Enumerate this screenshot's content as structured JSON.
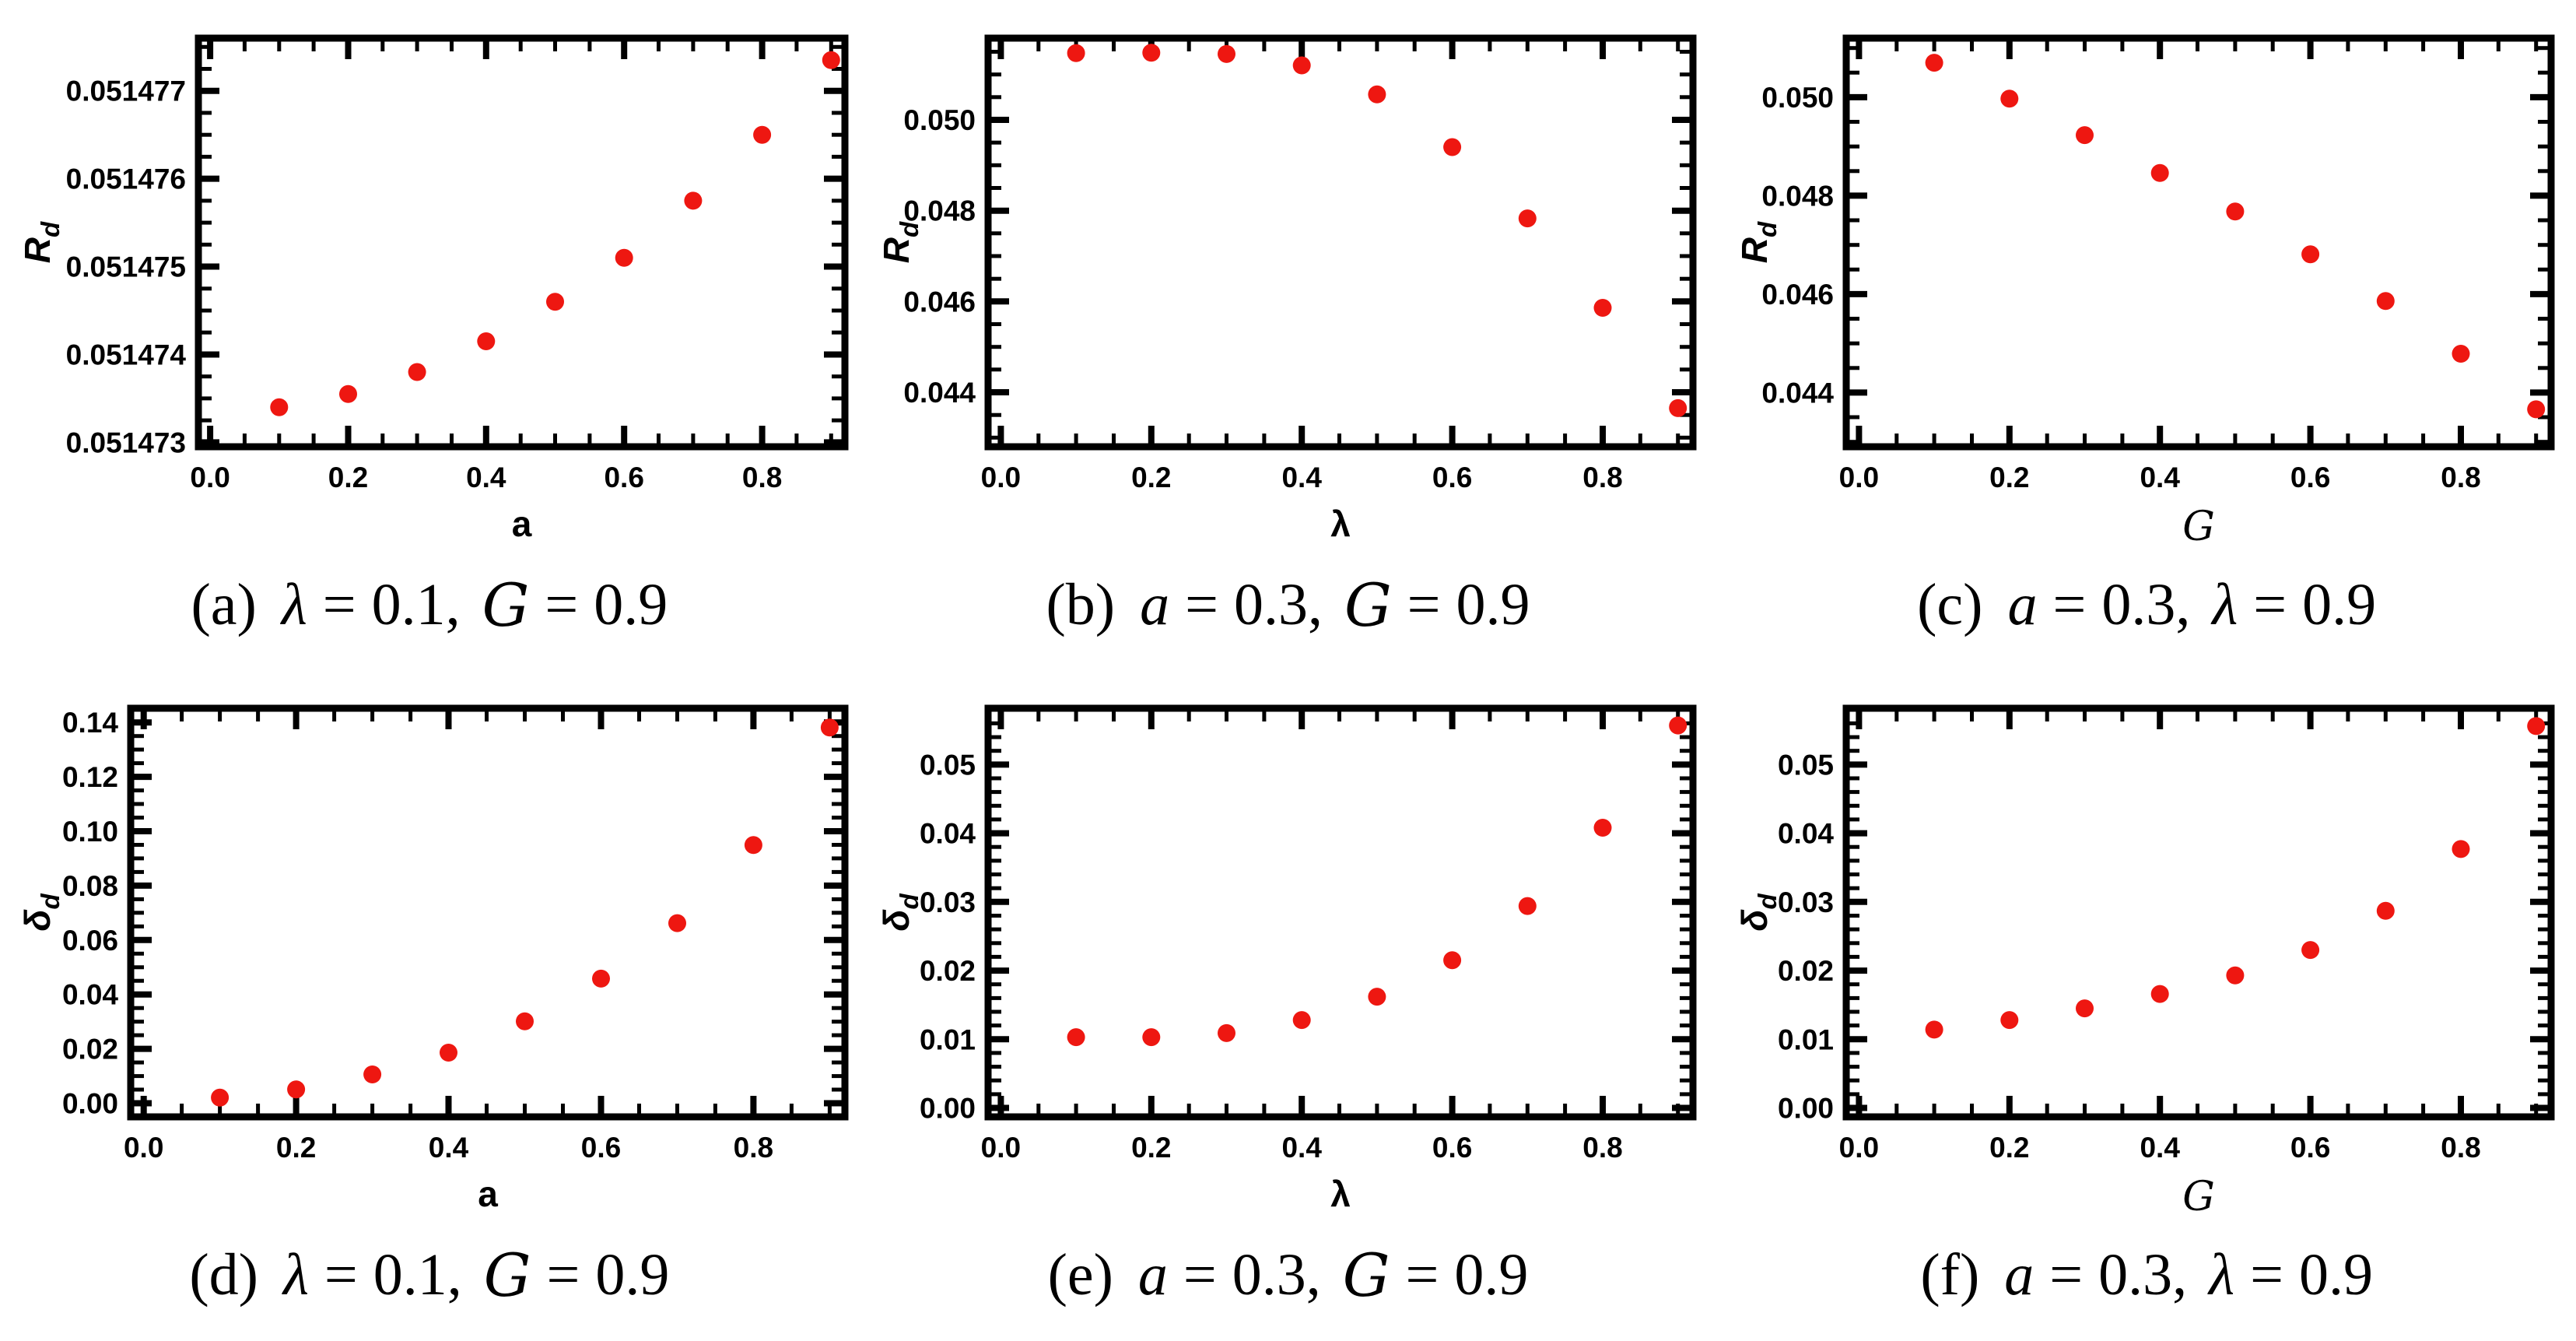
{
  "figure": {
    "background": "#ffffff",
    "point_color": "#ee1711",
    "frame_color": "#000000",
    "text_color": "#000000"
  },
  "math_glue": {
    "eq": "=",
    "comma": ","
  },
  "chart_data": [
    {
      "id": "a",
      "type": "scatter",
      "grid": false,
      "legend": null,
      "x": [
        0.1,
        0.2,
        0.3,
        0.4,
        0.5,
        0.6,
        0.7,
        0.8,
        0.9
      ],
      "y": [
        0.0514734,
        0.05147355,
        0.0514738,
        0.05147415,
        0.0514746,
        0.0514751,
        0.05147575,
        0.0514765,
        0.05147735
      ],
      "xlabel": {
        "text": "a",
        "script": false
      },
      "ylabel": {
        "base": "R",
        "sub": "d"
      },
      "xlim": [
        -0.017,
        0.92
      ],
      "ylim": [
        0.05147295,
        0.0514776
      ],
      "xticks": {
        "values": [
          0,
          0.2,
          0.4,
          0.6,
          0.8
        ],
        "labels": [
          "0.0",
          "0.2",
          "0.4",
          "0.6",
          "0.8"
        ],
        "minor_step": 0.05
      },
      "yticks": {
        "values": [
          0.051473,
          0.051474,
          0.051475,
          0.051476,
          0.051477
        ],
        "labels": [
          "0.051473",
          "0.051474",
          "0.051475",
          "0.051476",
          "0.051477"
        ],
        "minor_step": 2.5e-07
      },
      "caption": {
        "index": "(a)",
        "sym1": "λ",
        "val1": "0.1",
        "sym2": "G",
        "val2": "0.9"
      },
      "layout": {
        "left": 255,
        "right": 1086
      }
    },
    {
      "id": "b",
      "type": "scatter",
      "grid": false,
      "legend": null,
      "x": [
        0.1,
        0.2,
        0.3,
        0.4,
        0.5,
        0.6,
        0.7,
        0.8,
        0.9
      ],
      "y": [
        0.05147,
        0.05148,
        0.05145,
        0.0512,
        0.05056,
        0.0494,
        0.04783,
        0.04586,
        0.04365
      ],
      "xlabel": {
        "text": "λ",
        "script": false
      },
      "ylabel": {
        "base": "R",
        "sub": "d"
      },
      "xlim": [
        -0.017,
        0.92
      ],
      "ylim": [
        0.0428,
        0.0518
      ],
      "xticks": {
        "values": [
          0,
          0.2,
          0.4,
          0.6,
          0.8
        ],
        "labels": [
          "0.0",
          "0.2",
          "0.4",
          "0.6",
          "0.8"
        ],
        "minor_step": 0.05
      },
      "yticks": {
        "values": [
          0.044,
          0.046,
          0.048,
          0.05
        ],
        "labels": [
          "0.044",
          "0.046",
          "0.048",
          "0.050"
        ],
        "minor_step": 0.0005
      },
      "caption": {
        "index": "(b)",
        "sym1": "a",
        "val1": "0.3",
        "sym2": "G",
        "val2": "0.9"
      },
      "layout": {
        "left": 166,
        "right": 1072
      }
    },
    {
      "id": "c",
      "type": "scatter",
      "grid": false,
      "legend": null,
      "x": [
        0.1,
        0.2,
        0.3,
        0.4,
        0.5,
        0.6,
        0.7,
        0.8,
        0.9
      ],
      "y": [
        0.0507,
        0.04997,
        0.04923,
        0.04846,
        0.04768,
        0.04681,
        0.04586,
        0.04479,
        0.04366
      ],
      "xlabel": {
        "text": "G",
        "script": true
      },
      "ylabel": {
        "base": "R",
        "sub": "d"
      },
      "xlim": [
        -0.017,
        0.92
      ],
      "ylim": [
        0.0429,
        0.0512
      ],
      "xticks": {
        "values": [
          0,
          0.2,
          0.4,
          0.6,
          0.8
        ],
        "labels": [
          "0.0",
          "0.2",
          "0.4",
          "0.6",
          "0.8"
        ],
        "minor_step": 0.05
      },
      "yticks": {
        "values": [
          0.044,
          0.046,
          0.048,
          0.05
        ],
        "labels": [
          "0.044",
          "0.046",
          "0.048",
          "0.050"
        ],
        "minor_step": 0.0005
      },
      "caption": {
        "index": "(c)",
        "sym1": "a",
        "val1": "0.3",
        "sym2": "λ",
        "val2": "0.9"
      },
      "layout": {
        "left": 166,
        "right": 1072
      }
    },
    {
      "id": "d",
      "type": "scatter",
      "grid": false,
      "legend": null,
      "x": [
        0.1,
        0.2,
        0.3,
        0.4,
        0.5,
        0.6,
        0.7,
        0.8,
        0.9
      ],
      "y": [
        0.0021,
        0.0051,
        0.0106,
        0.0186,
        0.0301,
        0.0458,
        0.0662,
        0.0949,
        0.1381
      ],
      "xlabel": {
        "text": "a",
        "script": false
      },
      "ylabel": {
        "base": "δ",
        "sub": "d"
      },
      "xlim": [
        -0.017,
        0.92
      ],
      "ylim": [
        -0.005,
        0.1452
      ],
      "xticks": {
        "values": [
          0,
          0.2,
          0.4,
          0.6,
          0.8
        ],
        "labels": [
          "0.0",
          "0.2",
          "0.4",
          "0.6",
          "0.8"
        ],
        "minor_step": 0.05
      },
      "yticks": {
        "values": [
          0,
          0.02,
          0.04,
          0.06,
          0.08,
          0.1,
          0.12,
          0.14
        ],
        "labels": [
          "0.00",
          "0.02",
          "0.04",
          "0.06",
          "0.08",
          "0.10",
          "0.12",
          "0.14"
        ],
        "minor_step": 0.005
      },
      "caption": {
        "index": "(d)",
        "sym1": "λ",
        "val1": "0.1",
        "sym2": "G",
        "val2": "0.9"
      },
      "layout": {
        "left": 168,
        "right": 1086
      }
    },
    {
      "id": "e",
      "type": "scatter",
      "grid": false,
      "legend": null,
      "x": [
        0.1,
        0.2,
        0.3,
        0.4,
        0.5,
        0.6,
        0.7,
        0.8,
        0.9
      ],
      "y": [
        0.0103,
        0.0103,
        0.0109,
        0.0128,
        0.0162,
        0.0215,
        0.0294,
        0.0408,
        0.0557
      ],
      "xlabel": {
        "text": "λ",
        "script": false
      },
      "ylabel": {
        "base": "δ",
        "sub": "d"
      },
      "xlim": [
        -0.017,
        0.92
      ],
      "ylim": [
        -0.0013,
        0.0582
      ],
      "xticks": {
        "values": [
          0,
          0.2,
          0.4,
          0.6,
          0.8
        ],
        "labels": [
          "0.0",
          "0.2",
          "0.4",
          "0.6",
          "0.8"
        ],
        "minor_step": 0.05
      },
      "yticks": {
        "values": [
          0,
          0.01,
          0.02,
          0.03,
          0.04,
          0.05
        ],
        "labels": [
          "0.00",
          "0.01",
          "0.02",
          "0.03",
          "0.04",
          "0.05"
        ],
        "minor_step": 0.002
      },
      "caption": {
        "index": "(e)",
        "sym1": "a",
        "val1": "0.3",
        "sym2": "G",
        "val2": "0.9"
      },
      "layout": {
        "left": 166,
        "right": 1072
      }
    },
    {
      "id": "f",
      "type": "scatter",
      "grid": false,
      "legend": null,
      "x": [
        0.1,
        0.2,
        0.3,
        0.4,
        0.5,
        0.6,
        0.7,
        0.8,
        0.9
      ],
      "y": [
        0.0114,
        0.0128,
        0.0145,
        0.0166,
        0.0193,
        0.023,
        0.0287,
        0.0377,
        0.0556
      ],
      "xlabel": {
        "text": "G",
        "script": true
      },
      "ylabel": {
        "base": "δ",
        "sub": "d"
      },
      "xlim": [
        -0.017,
        0.92
      ],
      "ylim": [
        -0.0013,
        0.0582
      ],
      "xticks": {
        "values": [
          0,
          0.2,
          0.4,
          0.6,
          0.8
        ],
        "labels": [
          "0.0",
          "0.2",
          "0.4",
          "0.6",
          "0.8"
        ],
        "minor_step": 0.05
      },
      "yticks": {
        "values": [
          0,
          0.01,
          0.02,
          0.03,
          0.04,
          0.05
        ],
        "labels": [
          "0.00",
          "0.01",
          "0.02",
          "0.03",
          "0.04",
          "0.05"
        ],
        "minor_step": 0.002
      },
      "caption": {
        "index": "(f)",
        "sym1": "a",
        "val1": "0.3",
        "sym2": "λ",
        "val2": "0.9"
      },
      "layout": {
        "left": 166,
        "right": 1072
      }
    }
  ]
}
